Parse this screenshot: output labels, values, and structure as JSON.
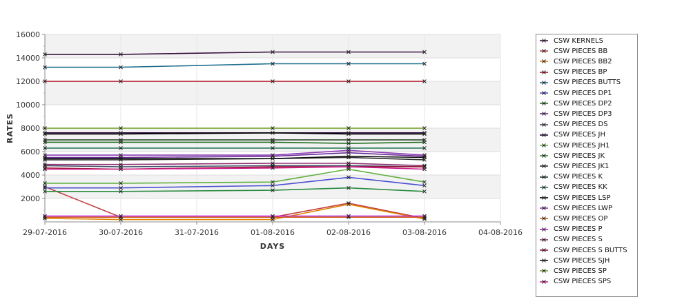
{
  "chart_data": {
    "type": "line",
    "xlabel": "DAYS",
    "ylabel": "RATES",
    "x": [
      "29-07-2016",
      "30-07-2016",
      "31-07-2016",
      "01-08-2016",
      "02-08-2016",
      "03-08-2016",
      "04-08-2016"
    ],
    "ylim": [
      0,
      16000
    ],
    "yticks": [
      2000,
      4000,
      6000,
      8000,
      10000,
      12000,
      14000,
      16000
    ],
    "grid": true,
    "legend_position": "right",
    "series": [
      {
        "name": "CSW KERNELS",
        "color": "#3a1040",
        "points": [
          {
            "x": "29-07-2016",
            "y": 14300
          },
          {
            "x": "30-07-2016",
            "y": 14300
          },
          {
            "x": "01-08-2016",
            "y": 14500
          },
          {
            "x": "02-08-2016",
            "y": 14500
          },
          {
            "x": "03-08-2016",
            "y": 14500
          }
        ]
      },
      {
        "name": "CSW PIECES BB",
        "color": "#c04040",
        "points": [
          {
            "x": "29-07-2016",
            "y": 3000
          },
          {
            "x": "30-07-2016",
            "y": 400
          },
          {
            "x": "01-08-2016",
            "y": 400
          },
          {
            "x": "02-08-2016",
            "y": 1600
          },
          {
            "x": "03-08-2016",
            "y": 300
          }
        ]
      },
      {
        "name": "CSW PIECES BB2",
        "color": "#e08000",
        "points": [
          {
            "x": "29-07-2016",
            "y": 300
          },
          {
            "x": "30-07-2016",
            "y": 200
          },
          {
            "x": "01-08-2016",
            "y": 200
          },
          {
            "x": "02-08-2016",
            "y": 1500
          },
          {
            "x": "03-08-2016",
            "y": 250
          }
        ]
      },
      {
        "name": "CSW PIECES BP",
        "color": "#b01020",
        "points": [
          {
            "x": "29-07-2016",
            "y": 12000
          },
          {
            "x": "30-07-2016",
            "y": 12000
          },
          {
            "x": "01-08-2016",
            "y": 12000
          },
          {
            "x": "02-08-2016",
            "y": 12000
          },
          {
            "x": "03-08-2016",
            "y": 12000
          }
        ]
      },
      {
        "name": "CSW PIECES BUTTS",
        "color": "#1f6f8f",
        "points": [
          {
            "x": "29-07-2016",
            "y": 13200
          },
          {
            "x": "30-07-2016",
            "y": 13200
          },
          {
            "x": "01-08-2016",
            "y": 13500
          },
          {
            "x": "02-08-2016",
            "y": 13500
          },
          {
            "x": "03-08-2016",
            "y": 13500
          }
        ]
      },
      {
        "name": "CSW PIECES DP1",
        "color": "#4a50d0",
        "points": [
          {
            "x": "29-07-2016",
            "y": 2900
          },
          {
            "x": "30-07-2016",
            "y": 2900
          },
          {
            "x": "01-08-2016",
            "y": 3100
          },
          {
            "x": "02-08-2016",
            "y": 3800
          },
          {
            "x": "03-08-2016",
            "y": 3100
          }
        ]
      },
      {
        "name": "CSW PIECES DP2",
        "color": "#207020",
        "points": [
          {
            "x": "29-07-2016",
            "y": 6800
          },
          {
            "x": "30-07-2016",
            "y": 6800
          },
          {
            "x": "01-08-2016",
            "y": 6800
          },
          {
            "x": "02-08-2016",
            "y": 6700
          },
          {
            "x": "03-08-2016",
            "y": 6800
          }
        ]
      },
      {
        "name": "CSW PIECES DP3",
        "color": "#6a2a9a",
        "points": [
          {
            "x": "29-07-2016",
            "y": 5500
          },
          {
            "x": "30-07-2016",
            "y": 5500
          },
          {
            "x": "01-08-2016",
            "y": 5600
          },
          {
            "x": "02-08-2016",
            "y": 5900
          },
          {
            "x": "03-08-2016",
            "y": 5600
          }
        ]
      },
      {
        "name": "CSW PIECES DS",
        "color": "#40506a",
        "points": [
          {
            "x": "29-07-2016",
            "y": 4800
          },
          {
            "x": "30-07-2016",
            "y": 4700
          },
          {
            "x": "01-08-2016",
            "y": 4800
          },
          {
            "x": "02-08-2016",
            "y": 4800
          },
          {
            "x": "03-08-2016",
            "y": 4700
          }
        ]
      },
      {
        "name": "CSW PIECES JH",
        "color": "#200030",
        "points": [
          {
            "x": "29-07-2016",
            "y": 7600
          },
          {
            "x": "30-07-2016",
            "y": 7600
          },
          {
            "x": "01-08-2016",
            "y": 7600
          },
          {
            "x": "02-08-2016",
            "y": 7600
          },
          {
            "x": "03-08-2016",
            "y": 7600
          }
        ]
      },
      {
        "name": "CSW PIECES JH1",
        "color": "#60b040",
        "points": [
          {
            "x": "29-07-2016",
            "y": 3300
          },
          {
            "x": "30-07-2016",
            "y": 3300
          },
          {
            "x": "01-08-2016",
            "y": 3400
          },
          {
            "x": "02-08-2016",
            "y": 4500
          },
          {
            "x": "03-08-2016",
            "y": 3400
          }
        ]
      },
      {
        "name": "CSW PIECES JK",
        "color": "#2a8a40",
        "points": [
          {
            "x": "29-07-2016",
            "y": 2600
          },
          {
            "x": "30-07-2016",
            "y": 2600
          },
          {
            "x": "01-08-2016",
            "y": 2700
          },
          {
            "x": "02-08-2016",
            "y": 2900
          },
          {
            "x": "03-08-2016",
            "y": 2600
          }
        ]
      },
      {
        "name": "CSW PIECES JK1",
        "color": "#303030",
        "points": [
          {
            "x": "29-07-2016",
            "y": 5300
          },
          {
            "x": "30-07-2016",
            "y": 5300
          },
          {
            "x": "01-08-2016",
            "y": 5400
          },
          {
            "x": "02-08-2016",
            "y": 5500
          },
          {
            "x": "03-08-2016",
            "y": 5300
          }
        ]
      },
      {
        "name": "CSW PIECES K",
        "color": "#1a3a1a",
        "points": [
          {
            "x": "29-07-2016",
            "y": 7000
          },
          {
            "x": "30-07-2016",
            "y": 7000
          },
          {
            "x": "01-08-2016",
            "y": 7000
          },
          {
            "x": "02-08-2016",
            "y": 7000
          },
          {
            "x": "03-08-2016",
            "y": 7000
          }
        ]
      },
      {
        "name": "CSW PIECES KK",
        "color": "#2a7a5a",
        "points": [
          {
            "x": "29-07-2016",
            "y": 6300
          },
          {
            "x": "30-07-2016",
            "y": 6300
          },
          {
            "x": "01-08-2016",
            "y": 6300
          },
          {
            "x": "02-08-2016",
            "y": 6300
          },
          {
            "x": "03-08-2016",
            "y": 6300
          }
        ]
      },
      {
        "name": "CSW PIECES LSP",
        "color": "#000000",
        "points": [
          {
            "x": "29-07-2016",
            "y": 7500
          },
          {
            "x": "30-07-2016",
            "y": 7500
          },
          {
            "x": "01-08-2016",
            "y": 7600
          },
          {
            "x": "02-08-2016",
            "y": 7500
          },
          {
            "x": "03-08-2016",
            "y": 7500
          }
        ]
      },
      {
        "name": "CSW PIECES LWP",
        "color": "#8a3ab0",
        "points": [
          {
            "x": "29-07-2016",
            "y": 5700
          },
          {
            "x": "30-07-2016",
            "y": 5700
          },
          {
            "x": "01-08-2016",
            "y": 5700
          },
          {
            "x": "02-08-2016",
            "y": 6100
          },
          {
            "x": "03-08-2016",
            "y": 5700
          }
        ]
      },
      {
        "name": "CSW PIECES OP",
        "color": "#d06010",
        "points": [
          {
            "x": "29-07-2016",
            "y": 400
          },
          {
            "x": "30-07-2016",
            "y": 400
          },
          {
            "x": "01-08-2016",
            "y": 400
          },
          {
            "x": "02-08-2016",
            "y": 400
          },
          {
            "x": "03-08-2016",
            "y": 400
          }
        ]
      },
      {
        "name": "CSW PIECES P",
        "color": "#c020e0",
        "points": [
          {
            "x": "29-07-2016",
            "y": 500
          },
          {
            "x": "30-07-2016",
            "y": 500
          },
          {
            "x": "01-08-2016",
            "y": 500
          },
          {
            "x": "02-08-2016",
            "y": 500
          },
          {
            "x": "03-08-2016",
            "y": 500
          }
        ]
      },
      {
        "name": "CSW PIECES S",
        "color": "#903070",
        "points": [
          {
            "x": "29-07-2016",
            "y": 4900
          },
          {
            "x": "30-07-2016",
            "y": 4900
          },
          {
            "x": "01-08-2016",
            "y": 5000
          },
          {
            "x": "02-08-2016",
            "y": 5000
          },
          {
            "x": "03-08-2016",
            "y": 4800
          }
        ]
      },
      {
        "name": "CSW PIECES S BUTTS",
        "color": "#a01030",
        "points": [
          {
            "x": "29-07-2016",
            "y": 4600
          },
          {
            "x": "30-07-2016",
            "y": 4500
          },
          {
            "x": "01-08-2016",
            "y": 4700
          },
          {
            "x": "02-08-2016",
            "y": 4700
          },
          {
            "x": "03-08-2016",
            "y": 4700
          }
        ]
      },
      {
        "name": "CSW PIECES SJH",
        "color": "#101010",
        "points": [
          {
            "x": "29-07-2016",
            "y": 5400
          },
          {
            "x": "30-07-2016",
            "y": 5400
          },
          {
            "x": "01-08-2016",
            "y": 5400
          },
          {
            "x": "02-08-2016",
            "y": 5600
          },
          {
            "x": "03-08-2016",
            "y": 5500
          }
        ]
      },
      {
        "name": "CSW PIECES SP",
        "color": "#70a020",
        "points": [
          {
            "x": "29-07-2016",
            "y": 8000
          },
          {
            "x": "30-07-2016",
            "y": 8000
          },
          {
            "x": "01-08-2016",
            "y": 8000
          },
          {
            "x": "02-08-2016",
            "y": 8000
          },
          {
            "x": "03-08-2016",
            "y": 8000
          }
        ]
      },
      {
        "name": "CSW PIECES SPS",
        "color": "#d02090",
        "points": [
          {
            "x": "29-07-2016",
            "y": 4500
          },
          {
            "x": "30-07-2016",
            "y": 4500
          },
          {
            "x": "01-08-2016",
            "y": 4600
          },
          {
            "x": "02-08-2016",
            "y": 4700
          },
          {
            "x": "03-08-2016",
            "y": 4500
          }
        ]
      }
    ]
  }
}
